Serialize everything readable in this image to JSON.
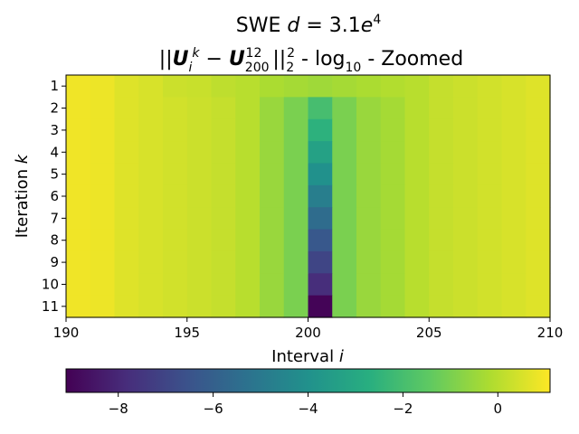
{
  "chart_data": {
    "type": "heatmap",
    "title_line1": "SWE d = 3.1e4",
    "title_line2": "||U_i^k − U_200^12||_2^2 - log10 - Zoomed",
    "xlabel": "Interval i",
    "ylabel": "Iteration k",
    "x_range": [
      190,
      210
    ],
    "x_ticks": [
      "190",
      "195",
      "200",
      "205",
      "210"
    ],
    "y_ticks": [
      "1",
      "2",
      "3",
      "4",
      "5",
      "6",
      "7",
      "8",
      "9",
      "10",
      "11"
    ],
    "colorbar_range": [
      -9.1,
      1.1
    ],
    "colorbar_ticks": [
      "−8",
      "−6",
      "−4",
      "−2",
      "0"
    ],
    "colorbar_tick_values": [
      -8,
      -6,
      -4,
      -2,
      0
    ],
    "colormap": "viridis",
    "intervals": [
      190,
      191,
      192,
      193,
      194,
      195,
      196,
      197,
      198,
      199,
      200,
      201,
      202,
      203,
      204,
      205,
      206,
      207,
      208,
      209
    ],
    "iterations": [
      1,
      2,
      3,
      4,
      5,
      6,
      7,
      8,
      9,
      10,
      11
    ],
    "values": [
      [
        0.9,
        0.85,
        0.6,
        0.5,
        0.3,
        0.25,
        0.1,
        0.0,
        -0.2,
        -0.3,
        -0.4,
        -0.3,
        -0.2,
        -0.1,
        0.0,
        0.2,
        0.3,
        0.4,
        0.5,
        0.6
      ],
      [
        0.9,
        0.85,
        0.6,
        0.5,
        0.4,
        0.3,
        0.2,
        0.0,
        -0.5,
        -1.0,
        -2.0,
        -1.0,
        -0.5,
        -0.3,
        0.0,
        0.2,
        0.3,
        0.4,
        0.5,
        0.6
      ],
      [
        0.9,
        0.85,
        0.6,
        0.5,
        0.4,
        0.3,
        0.2,
        0.0,
        -0.5,
        -1.0,
        -2.6,
        -1.0,
        -0.5,
        -0.3,
        0.0,
        0.2,
        0.3,
        0.4,
        0.5,
        0.6
      ],
      [
        0.9,
        0.85,
        0.6,
        0.5,
        0.4,
        0.3,
        0.2,
        0.0,
        -0.5,
        -1.0,
        -3.3,
        -1.0,
        -0.5,
        -0.3,
        0.0,
        0.2,
        0.3,
        0.4,
        0.5,
        0.6
      ],
      [
        0.9,
        0.85,
        0.6,
        0.5,
        0.4,
        0.3,
        0.2,
        0.0,
        -0.5,
        -1.0,
        -4.0,
        -1.0,
        -0.5,
        -0.3,
        0.0,
        0.2,
        0.3,
        0.4,
        0.5,
        0.6
      ],
      [
        0.9,
        0.85,
        0.6,
        0.5,
        0.4,
        0.3,
        0.2,
        0.0,
        -0.5,
        -1.0,
        -4.8,
        -1.0,
        -0.5,
        -0.3,
        0.0,
        0.2,
        0.3,
        0.4,
        0.5,
        0.6
      ],
      [
        0.9,
        0.85,
        0.6,
        0.5,
        0.4,
        0.3,
        0.2,
        0.0,
        -0.5,
        -1.0,
        -5.5,
        -1.0,
        -0.5,
        -0.3,
        0.0,
        0.2,
        0.3,
        0.4,
        0.5,
        0.6
      ],
      [
        0.9,
        0.85,
        0.6,
        0.5,
        0.4,
        0.3,
        0.2,
        0.0,
        -0.5,
        -1.0,
        -6.3,
        -1.0,
        -0.5,
        -0.3,
        0.0,
        0.2,
        0.3,
        0.4,
        0.5,
        0.6
      ],
      [
        0.9,
        0.85,
        0.6,
        0.5,
        0.4,
        0.3,
        0.2,
        0.0,
        -0.5,
        -1.0,
        -7.0,
        -1.0,
        -0.5,
        -0.3,
        0.0,
        0.2,
        0.3,
        0.4,
        0.5,
        0.6
      ],
      [
        0.9,
        0.85,
        0.6,
        0.5,
        0.4,
        0.3,
        0.2,
        0.0,
        -0.5,
        -1.0,
        -7.8,
        -1.0,
        -0.5,
        -0.3,
        0.0,
        0.2,
        0.3,
        0.4,
        0.5,
        0.6
      ],
      [
        0.9,
        0.85,
        0.6,
        0.5,
        0.4,
        0.3,
        0.2,
        0.0,
        -0.5,
        -1.0,
        -9.0,
        -1.0,
        -0.5,
        -0.3,
        0.0,
        0.2,
        0.3,
        0.4,
        0.5,
        0.6
      ]
    ]
  }
}
